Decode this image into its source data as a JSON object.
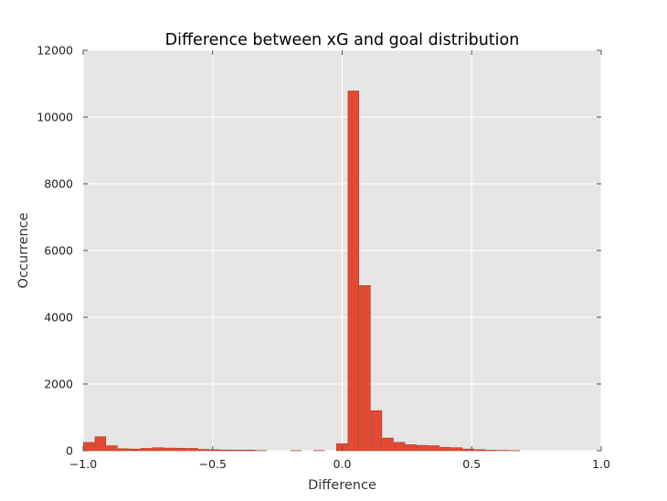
{
  "chart_data": {
    "type": "bar",
    "title": "Difference between xG and goal distribution",
    "xlabel": "Difference",
    "ylabel": "Occurrence",
    "xlim": [
      -1.0,
      1.0
    ],
    "ylim": [
      0,
      12000
    ],
    "xticks": [
      "−1.0",
      "−0.5",
      "0.0",
      "0.5",
      "1.0"
    ],
    "xtick_values": [
      -1.0,
      -0.5,
      0.0,
      0.5,
      1.0
    ],
    "yticks": [
      "0",
      "2000",
      "4000",
      "6000",
      "8000",
      "10000",
      "12000"
    ],
    "ytick_values": [
      0,
      2000,
      4000,
      6000,
      8000,
      10000,
      12000
    ],
    "grid": true,
    "bin_width": 0.0444,
    "bin_start": -1.0,
    "values": [
      250,
      420,
      150,
      60,
      50,
      70,
      90,
      80,
      75,
      70,
      40,
      30,
      20,
      20,
      20,
      5,
      0,
      0,
      5,
      0,
      5,
      0,
      210,
      10780,
      4950,
      1200,
      380,
      250,
      180,
      160,
      150,
      100,
      90,
      50,
      30,
      15,
      10,
      5,
      0,
      0,
      0,
      0,
      0,
      0,
      0
    ],
    "colors": {
      "bar": "#e24a33",
      "bar_edge": "#b33620",
      "plot_bg": "#e5e5e5",
      "grid": "#ffffff"
    }
  }
}
